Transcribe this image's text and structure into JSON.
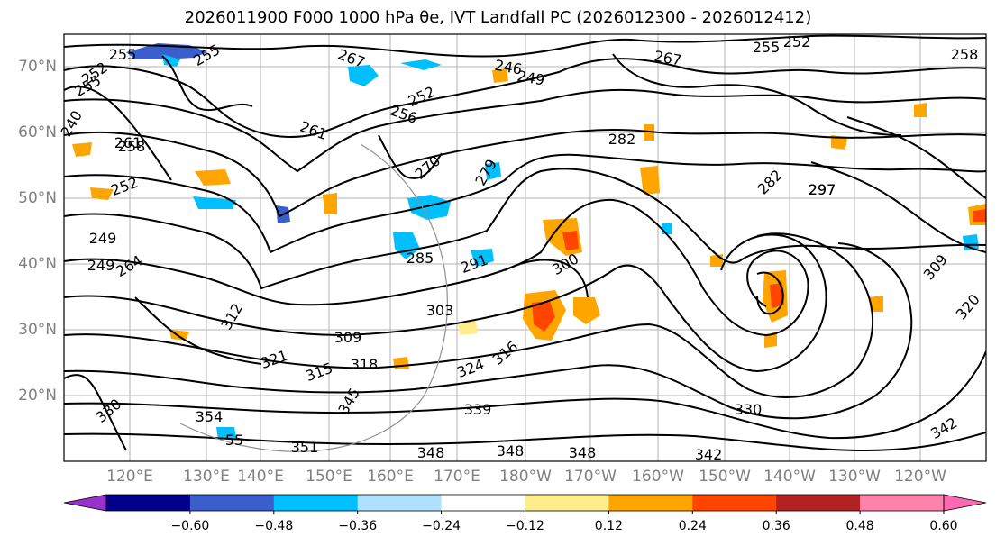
{
  "title": "2026011900 F000 1000 hPa θe, IVT Landfall PC (2026012300 - 2026012412)",
  "lat_labels": [
    "70°N",
    "60°N",
    "50°N",
    "40°N",
    "30°N",
    "20°N"
  ],
  "lon_labels": [
    "120°E",
    "130°E",
    "140°E",
    "150°E",
    "160°E",
    "170°E",
    "180°W",
    "170°W",
    "160°W",
    "150°W",
    "140°W",
    "130°W",
    "120°W"
  ],
  "colorbar": {
    "ticks": [
      "−0.60",
      "−0.48",
      "−0.36",
      "−0.24",
      "−0.12",
      "0.12",
      "0.24",
      "0.36",
      "0.48",
      "0.60"
    ],
    "colors": [
      "#9932cc",
      "#00008b",
      "#3a5fcd",
      "#00bfff",
      "#b0e2ff",
      "#ffffff",
      "#ffec8b",
      "#ffa500",
      "#ff4500",
      "#b22222",
      "#ff82ab",
      "#ff69b4"
    ]
  },
  "contour_labels": [
    "255",
    "252",
    "255",
    "267",
    "246",
    "249",
    "252",
    "255",
    "252",
    "267",
    "256",
    "240",
    "258",
    "252",
    "261",
    "270",
    "279",
    "282",
    "297",
    "297",
    "249",
    "264",
    "285",
    "291",
    "300",
    "303",
    "309",
    "312",
    "321",
    "315",
    "318",
    "324",
    "316",
    "339",
    "330",
    "330",
    "354",
    "345",
    "351",
    "348",
    "348",
    "348",
    "342",
    "342",
    "309",
    "320",
    "282",
    "261",
    "255",
    "249",
    "55",
    "258"
  ],
  "colors": {
    "contour": "#000000",
    "grid": "#b3b3b3",
    "label": "#808080"
  }
}
